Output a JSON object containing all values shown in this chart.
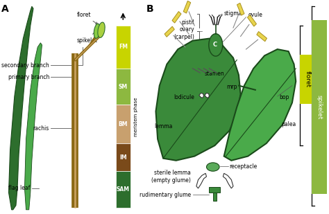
{
  "bg_color": "#ffffff",
  "panel_a_label": "A",
  "panel_b_label": "B",
  "meristem_phases": [
    {
      "label": "FM",
      "color": "#c8d400",
      "ymin": 0.68,
      "ymax": 0.88
    },
    {
      "label": "SM",
      "color": "#8db840",
      "ymin": 0.51,
      "ymax": 0.68
    },
    {
      "label": "BM",
      "color": "#c8a06e",
      "ymin": 0.33,
      "ymax": 0.51
    },
    {
      "label": "IM",
      "color": "#7a4a1a",
      "ymin": 0.2,
      "ymax": 0.33
    },
    {
      "label": "SAM",
      "color": "#2d6e2d",
      "ymin": 0.03,
      "ymax": 0.2
    }
  ],
  "dark_green": "#2d6e2d",
  "medium_green": "#4a9a4a",
  "lighter_green": "#5aaa5a",
  "yellow_green": "#c8d400",
  "sm_green": "#8db840",
  "brown_stem": "#8B6914",
  "brown_dark": "#5a3010",
  "yellow": "#e8d44d",
  "yellow_dark": "#b8a020",
  "floret_box_color": "#c8d400",
  "spikelet_box_color": "#8db840"
}
